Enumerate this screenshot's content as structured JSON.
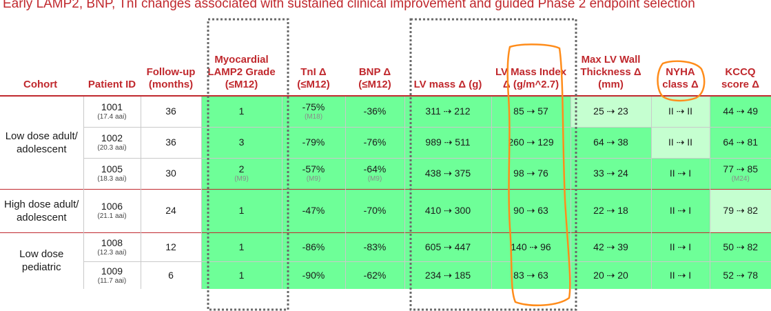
{
  "banner": "Early LAMP2, BNP, TnI changes associated with sustained clinical improvement and guided Phase 2 endpoint selection",
  "headers": {
    "cohort": "Cohort",
    "patient": "Patient ID",
    "followup": "Follow-up (months)",
    "lamp2": "Myocardial LAMP2 Grade (≤M12)",
    "tni": "TnI Δ (≤M12)",
    "bnp": "BNP Δ (≤M12)",
    "lvmass": "LV mass Δ (g)",
    "lvmi": "LV Mass Index Δ (g/m^2.7)",
    "wall": "Max LV Wall Thickness Δ (mm)",
    "nyha": "NYHA class Δ",
    "kccq": "KCCQ score Δ"
  },
  "cohorts": [
    "Low dose adult/ adolescent",
    "High dose adult/ adolescent",
    "Low dose pediatric"
  ],
  "rows": [
    {
      "id": "1001",
      "age": "(17.4 aai)",
      "fu": "36",
      "lamp2": "1",
      "lamp2_note": "",
      "tni": "-75%",
      "tni_note": "(M18)",
      "bnp": "-36%",
      "bnp_note": "",
      "lvmass": "311 ⇢ 212",
      "lvmi": "85 ⇢ 57",
      "wall": "25 ⇢ 23",
      "nyha": "II ⇢ II",
      "kccq": "44 ⇢ 49",
      "kccq_note": ""
    },
    {
      "id": "1002",
      "age": "(20.3 aai)",
      "fu": "36",
      "lamp2": "3",
      "lamp2_note": "",
      "tni": "-79%",
      "tni_note": "",
      "bnp": "-76%",
      "bnp_note": "",
      "lvmass": "989 ⇢ 511",
      "lvmi": "260 ⇢ 129",
      "wall": "64 ⇢ 38",
      "nyha": "II ⇢ II",
      "kccq": "64 ⇢ 81",
      "kccq_note": ""
    },
    {
      "id": "1005",
      "age": "(18.3 aai)",
      "fu": "30",
      "lamp2": "2",
      "lamp2_note": "(M9)",
      "tni": "-57%",
      "tni_note": "(M9)",
      "bnp": "-64%",
      "bnp_note": "(M9)",
      "lvmass": "438 ⇢ 375",
      "lvmi": "98 ⇢ 76",
      "wall": "33 ⇢ 24",
      "nyha": "II ⇢ I",
      "kccq": "77 ⇢ 85",
      "kccq_note": "(M24)"
    },
    {
      "id": "1006",
      "age": "(21.1 aai)",
      "fu": "24",
      "lamp2": "1",
      "lamp2_note": "",
      "tni": "-47%",
      "tni_note": "",
      "bnp": "-70%",
      "bnp_note": "",
      "lvmass": "410 ⇢ 300",
      "lvmi": "90 ⇢ 63",
      "wall": "22 ⇢ 18",
      "nyha": "II ⇢ I",
      "kccq": "79 ⇢ 82",
      "kccq_note": ""
    },
    {
      "id": "1008",
      "age": "(12.3 aai)",
      "fu": "12",
      "lamp2": "1",
      "lamp2_note": "",
      "tni": "-86%",
      "tni_note": "",
      "bnp": "-83%",
      "bnp_note": "",
      "lvmass": "605 ⇢ 447",
      "lvmi": "140 ⇢ 96",
      "wall": "42 ⇢ 39",
      "nyha": "II ⇢ I",
      "kccq": "50 ⇢ 82",
      "kccq_note": ""
    },
    {
      "id": "1009",
      "age": "(11.7 aai)",
      "fu": "6",
      "lamp2": "1",
      "lamp2_note": "",
      "tni": "-90%",
      "tni_note": "",
      "bnp": "-62%",
      "bnp_note": "",
      "lvmass": "234 ⇢ 185",
      "lvmi": "83 ⇢ 63",
      "wall": "20 ⇢ 20",
      "nyha": "II ⇢ I",
      "kccq": "52 ⇢ 78",
      "kccq_note": ""
    }
  ],
  "colors": {
    "header_red": "#c0282d",
    "cell_green": "#6eff98",
    "cell_pale_green": "#c5ffd0",
    "highlight_orange": "#ff8c1a"
  }
}
